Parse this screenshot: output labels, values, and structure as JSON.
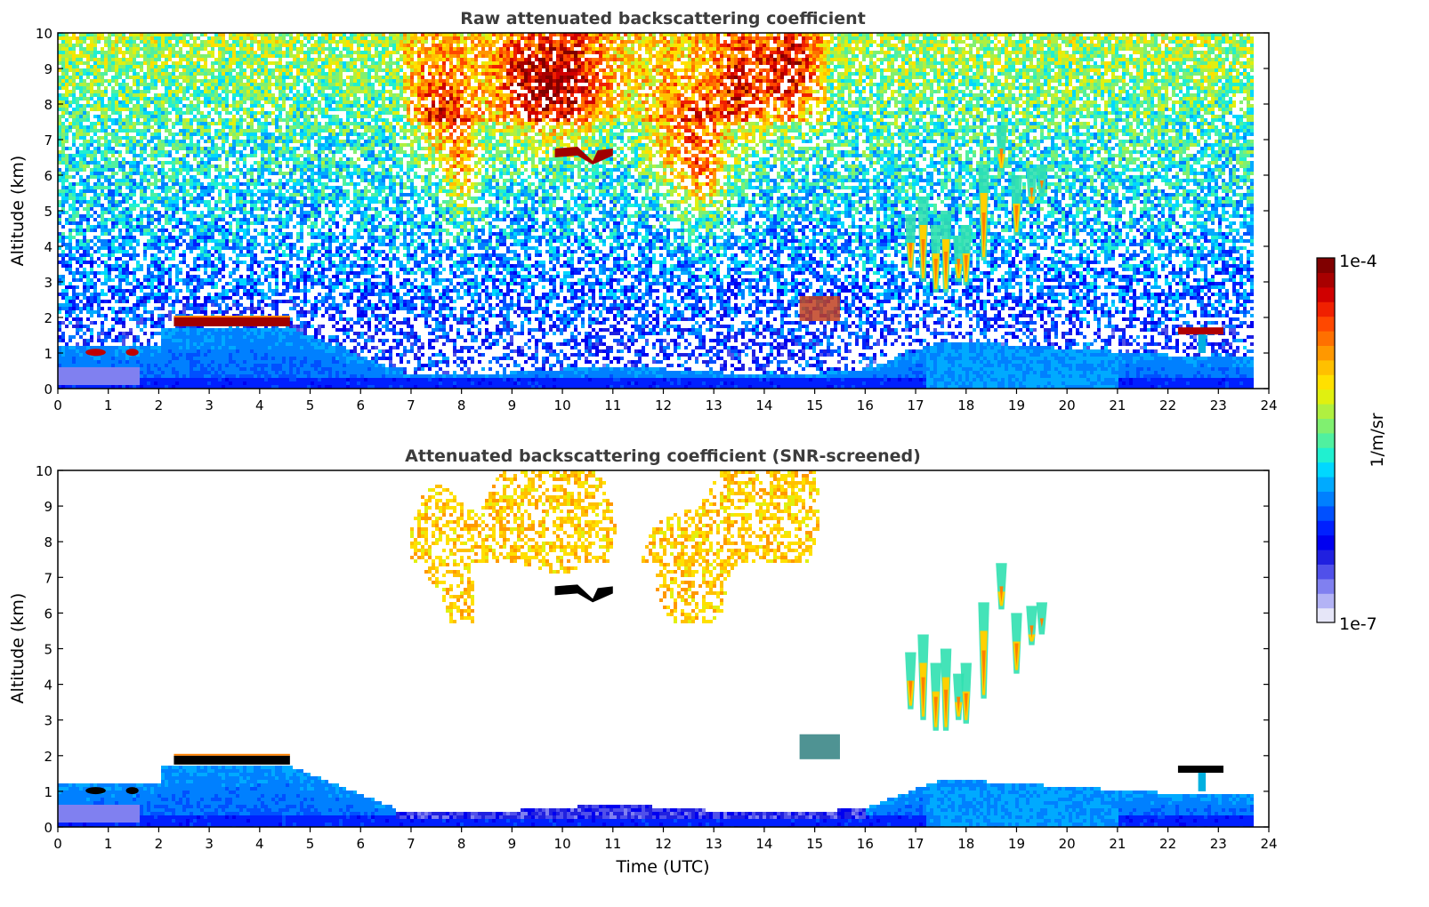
{
  "chart_data": [
    {
      "type": "heatmap",
      "title": "Raw attenuated backscattering coefficient",
      "xlabel": "",
      "ylabel": "Altitude (km)",
      "xlim": [
        0,
        24
      ],
      "ylim": [
        0,
        10
      ],
      "x_ticks": [
        "0",
        "1",
        "2",
        "3",
        "4",
        "5",
        "6",
        "7",
        "8",
        "9",
        "10",
        "11",
        "12",
        "13",
        "14",
        "15",
        "16",
        "17",
        "18",
        "19",
        "20",
        "21",
        "22",
        "23",
        "24"
      ],
      "y_ticks": [
        "0",
        "1",
        "2",
        "3",
        "4",
        "5",
        "6",
        "7",
        "8",
        "9",
        "10"
      ],
      "data_end_time": 23.65,
      "features": [
        {
          "name": "boundary layer aerosol",
          "t0": 0,
          "t1": 23.65,
          "alt_top": 2.2
        },
        {
          "name": "low cloud 2-4.6h",
          "t0": 2.3,
          "t1": 4.6,
          "alt": 1.85
        },
        {
          "name": "mid cloud 10h",
          "t0": 9.8,
          "t1": 11.0,
          "alt": 6.6
        },
        {
          "name": "high cirrus 7-15h",
          "t0": 6.8,
          "t1": 15.0,
          "alt_min": 5.8,
          "alt_max": 10
        },
        {
          "name": "precipitating cloud 17-19.5h",
          "t0": 16.8,
          "t1": 19.6,
          "alt_min": 2.8,
          "alt_max": 7.4
        },
        {
          "name": "cloud 15h",
          "t0": 14.7,
          "t1": 15.6,
          "alt": 2.3
        },
        {
          "name": "low cloud 22.5h",
          "t0": 22.2,
          "t1": 23.1,
          "alt": 1.6
        }
      ]
    },
    {
      "type": "heatmap",
      "title": "Attenuated backscattering coefficient (SNR-screened)",
      "xlabel": "Time (UTC)",
      "ylabel": "Altitude (km)",
      "xlim": [
        0,
        24
      ],
      "ylim": [
        0,
        10
      ],
      "x_ticks": [
        "0",
        "1",
        "2",
        "3",
        "4",
        "5",
        "6",
        "7",
        "8",
        "9",
        "10",
        "11",
        "12",
        "13",
        "14",
        "15",
        "16",
        "17",
        "18",
        "19",
        "20",
        "21",
        "22",
        "23",
        "24"
      ],
      "y_ticks": [
        "0",
        "1",
        "2",
        "3",
        "4",
        "5",
        "6",
        "7",
        "8",
        "9",
        "10"
      ],
      "data_end_time": 23.65
    }
  ],
  "colorbar": {
    "label": "1/m/sr",
    "max_label": "1e-4",
    "min_label": "1e-7",
    "scale": "log",
    "range": [
      1e-07,
      0.0001
    ],
    "colors": [
      "#e6e6f8",
      "#b3b3f5",
      "#8080f0",
      "#5050ea",
      "#2020e0",
      "#0000f0",
      "#0020ff",
      "#0050ff",
      "#0080ff",
      "#00aaff",
      "#00d8ff",
      "#20f0d0",
      "#50f0a0",
      "#80f070",
      "#b0f040",
      "#e0f010",
      "#ffe000",
      "#ffc000",
      "#ff9800",
      "#ff7000",
      "#ff4800",
      "#f02000",
      "#d00000",
      "#a80000",
      "#800000"
    ]
  }
}
